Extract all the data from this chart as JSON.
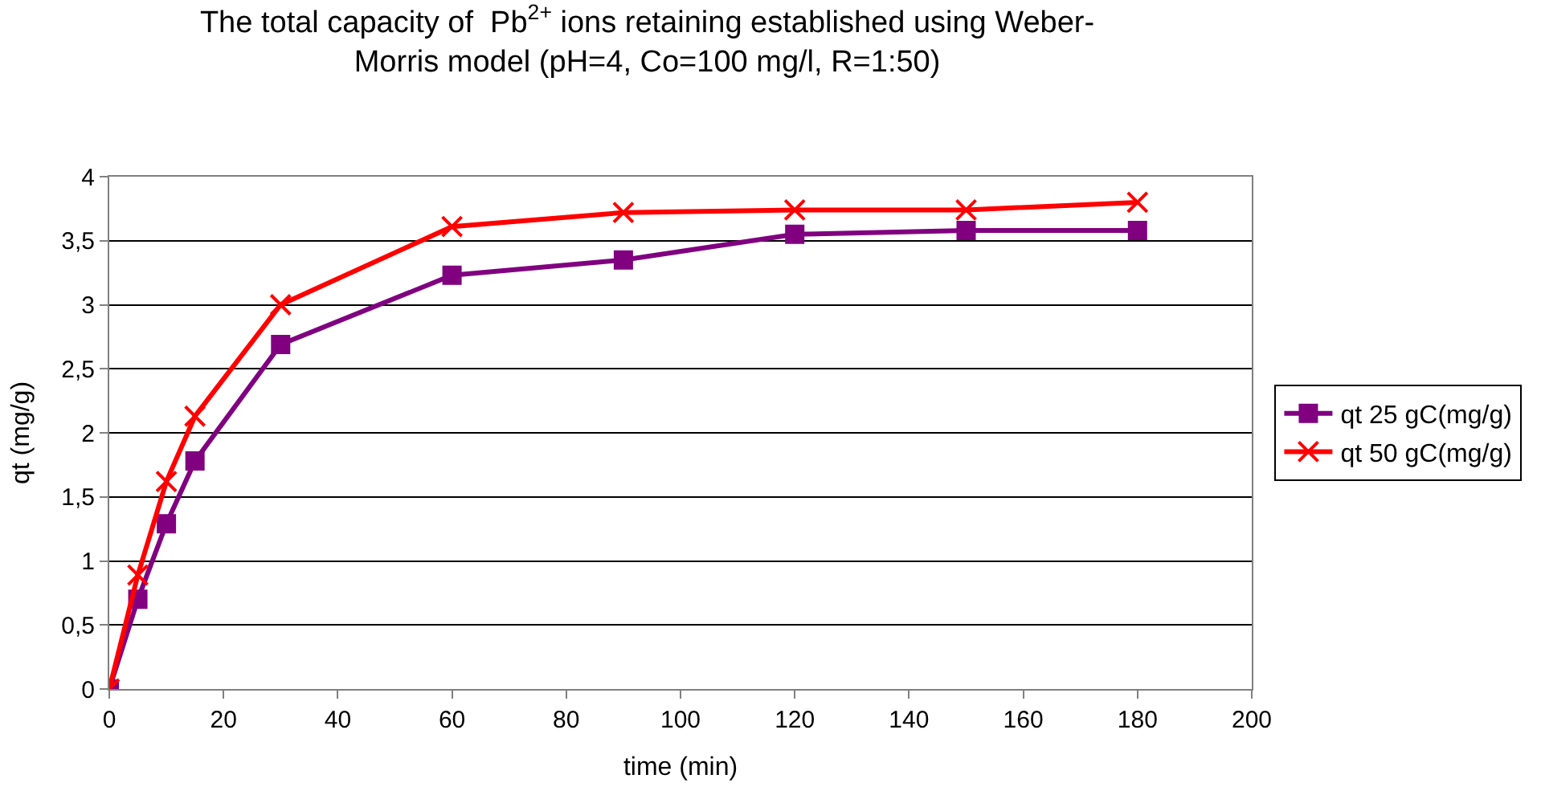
{
  "chart_data": {
    "type": "line",
    "title": "The total capacity of  Pb$^{2+}$ ions retaining established using Weber-\nMorris model (pH=4, Co=100 mg/l, R=1:50)",
    "xlabel": "time (min)",
    "ylabel": "qt (mg/g)",
    "x": [
      0,
      5,
      10,
      15,
      30,
      60,
      90,
      120,
      150,
      180
    ],
    "series": [
      {
        "name": "qt 25 gC(mg/g)",
        "color": "#800080",
        "marker": "square",
        "values": [
          0,
          0.7,
          1.29,
          1.78,
          2.69,
          3.23,
          3.35,
          3.55,
          3.58,
          3.58
        ]
      },
      {
        "name": "qt 50 gC(mg/g)",
        "color": "#ff0000",
        "marker": "cross",
        "values": [
          0,
          0.89,
          1.62,
          2.13,
          3.0,
          3.61,
          3.72,
          3.74,
          3.74,
          3.8
        ]
      }
    ],
    "xlim": [
      0,
      200
    ],
    "xticks": [
      0,
      20,
      40,
      60,
      80,
      100,
      120,
      140,
      160,
      180,
      200
    ],
    "ylim": [
      0,
      4
    ],
    "yticks": [
      0,
      {
        "value": 0.5,
        "label": "0,5"
      },
      1,
      {
        "value": 1.5,
        "label": "1,5"
      },
      2,
      {
        "value": 2.5,
        "label": "2,5"
      },
      3,
      {
        "value": 3.5,
        "label": "3,5"
      },
      4
    ],
    "grid": "y",
    "legend": "right",
    "line_style": "solid"
  }
}
